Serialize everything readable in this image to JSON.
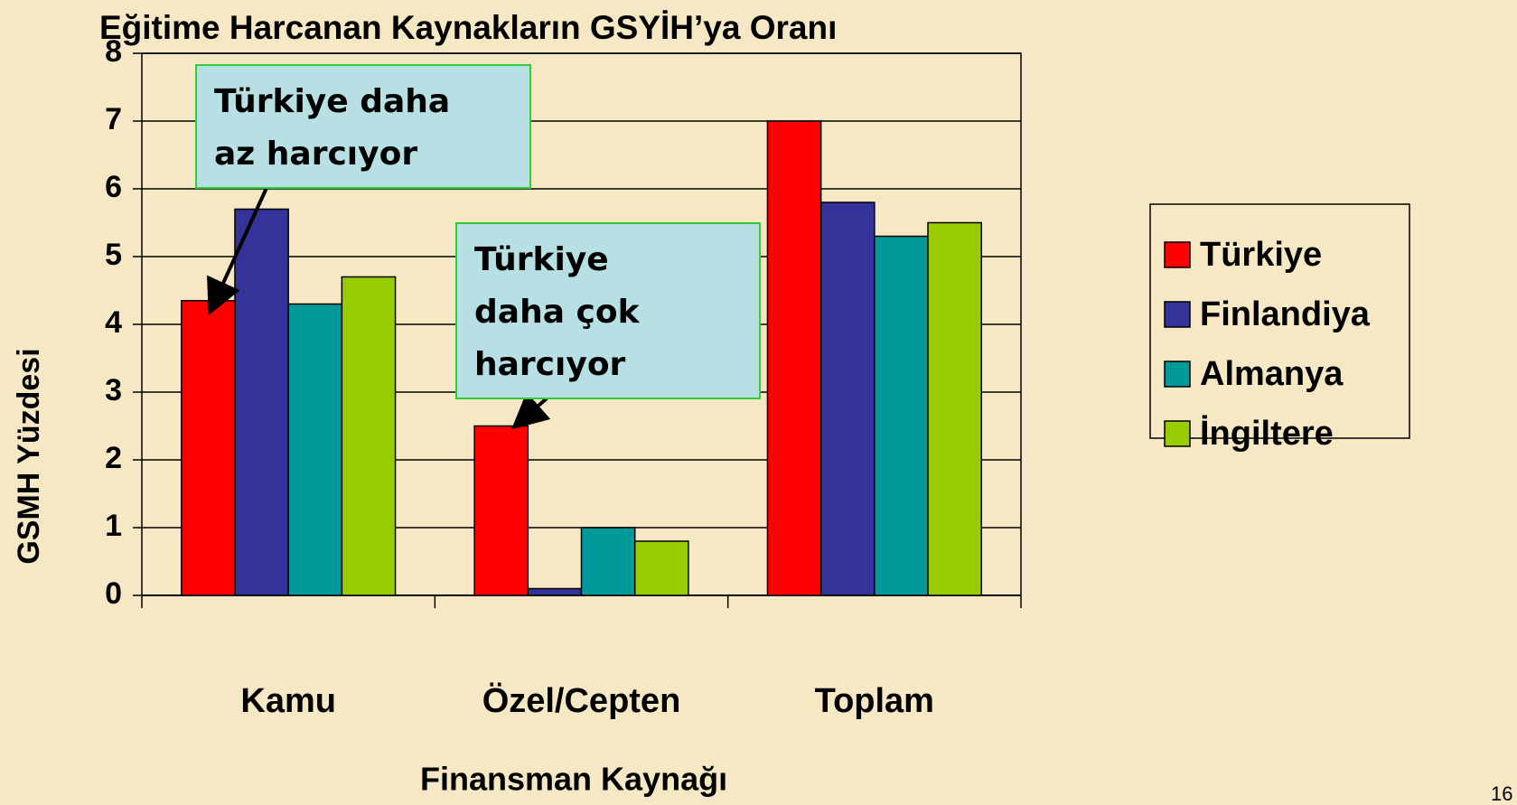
{
  "chart_data": {
    "type": "bar",
    "title": "Eğitime Harcanan Kaynakların GSYİH’ya Oranı",
    "x_label": "Finansman Kaynağı",
    "y_label": "GSMH Yüzdesi",
    "categories": [
      "Kamu",
      "Özel/Cepten",
      "Toplam"
    ],
    "series": [
      {
        "name": "Türkiye",
        "color": "#ff0000",
        "values": [
          4.35,
          2.5,
          7.0
        ]
      },
      {
        "name": "Finlandiya",
        "color": "#333399",
        "values": [
          5.7,
          0.1,
          5.8
        ]
      },
      {
        "name": "Almanya",
        "color": "#009999",
        "values": [
          4.3,
          1.0,
          5.3
        ]
      },
      {
        "name": "İngiltere",
        "color": "#99cc00",
        "values": [
          4.7,
          0.8,
          5.5
        ]
      }
    ],
    "ylim": [
      0,
      8
    ],
    "yticks": [
      0,
      1,
      2,
      3,
      4,
      5,
      6,
      7,
      8
    ],
    "grid": true,
    "legend": "right",
    "annotations": [
      {
        "lines": [
          "Türkiye daha",
          "az harcıyor"
        ]
      },
      {
        "lines": [
          "Türkiye",
          "daha çok",
          "harcıyor"
        ]
      }
    ],
    "page_number": "16"
  }
}
